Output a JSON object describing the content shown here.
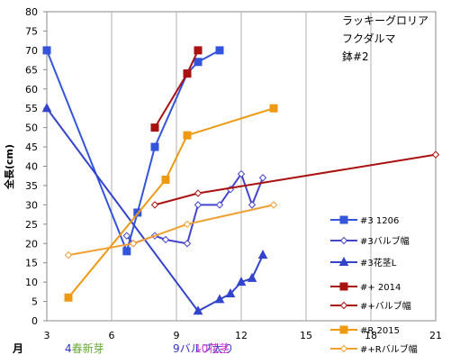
{
  "chart_data": {
    "type": "line",
    "ylabel": "全長(cm)",
    "xlabel": "月",
    "xlim": [
      3,
      21
    ],
    "ylim": [
      0,
      80
    ],
    "x_ticks": [
      3,
      6,
      9,
      12,
      15,
      18,
      21
    ],
    "y_ticks": [
      0,
      5,
      10,
      15,
      20,
      25,
      30,
      35,
      40,
      45,
      50,
      55,
      60,
      65,
      70,
      75,
      80
    ],
    "grid": "vertical",
    "legend_position": "right",
    "note_lines": [
      "ラッキーグロリア",
      "フクダルマ",
      "鉢#2"
    ],
    "month_annotations": [
      {
        "num": "4",
        "text": "春新芽",
        "x": 4,
        "num_color": "#3333cc",
        "text_color": "#66aa33"
      },
      {
        "num": "9",
        "text": "バルブ太り",
        "x": 9,
        "num_color": "#3333cc",
        "text_color": "#3333cc"
      },
      {
        "num": "10",
        "text": "花茎",
        "x": 10,
        "num_color": "#cc33cc",
        "text_color": "#cc33cc"
      }
    ],
    "series": [
      {
        "name": "#3 1206",
        "color": "#3355dd",
        "marker": "square",
        "filled": true,
        "points": [
          [
            3,
            70
          ],
          [
            6.7,
            18
          ],
          [
            7.2,
            28
          ],
          [
            8,
            45
          ],
          [
            9.5,
            64
          ],
          [
            10,
            67
          ],
          [
            11,
            70
          ]
        ]
      },
      {
        "name": "#3バルブ幅",
        "color": "#4444cc",
        "marker": "diamond",
        "filled": false,
        "points": [
          [
            6.7,
            22
          ],
          [
            7,
            20
          ],
          [
            8,
            22
          ],
          [
            8.5,
            21
          ],
          [
            9.5,
            20
          ],
          [
            10,
            30
          ],
          [
            11,
            30
          ],
          [
            11.5,
            34
          ],
          [
            12,
            38
          ],
          [
            12.5,
            30
          ],
          [
            13,
            37
          ]
        ]
      },
      {
        "name": "#3花茎L",
        "color": "#3344cc",
        "marker": "triangle",
        "filled": true,
        "points": [
          [
            3,
            55
          ],
          [
            10,
            2.5
          ],
          [
            11,
            5.5
          ],
          [
            11.5,
            7
          ],
          [
            12,
            10
          ],
          [
            12.5,
            11
          ],
          [
            13,
            17
          ]
        ]
      },
      {
        "name": "#+ 2014",
        "color": "#aa1111",
        "marker": "square",
        "filled": true,
        "points": [
          [
            8,
            50
          ],
          [
            9.5,
            64
          ],
          [
            10,
            70
          ]
        ]
      },
      {
        "name": "#+バルブ幅",
        "color": "#aa1111",
        "marker": "diamond",
        "filled": false,
        "points": [
          [
            8,
            30
          ],
          [
            10,
            33
          ],
          [
            21,
            43
          ]
        ]
      },
      {
        "name": "#R 2015",
        "color": "#ee9911",
        "marker": "square",
        "filled": true,
        "points": [
          [
            4,
            6
          ],
          [
            8.5,
            36.5
          ],
          [
            9.5,
            48
          ],
          [
            13.5,
            55
          ]
        ]
      },
      {
        "name": "#+Rバルブ幅",
        "color": "#f0a030",
        "marker": "diamond",
        "filled": false,
        "points": [
          [
            4,
            17
          ],
          [
            7,
            20
          ],
          [
            9.5,
            25
          ],
          [
            13.5,
            30
          ]
        ]
      }
    ]
  }
}
